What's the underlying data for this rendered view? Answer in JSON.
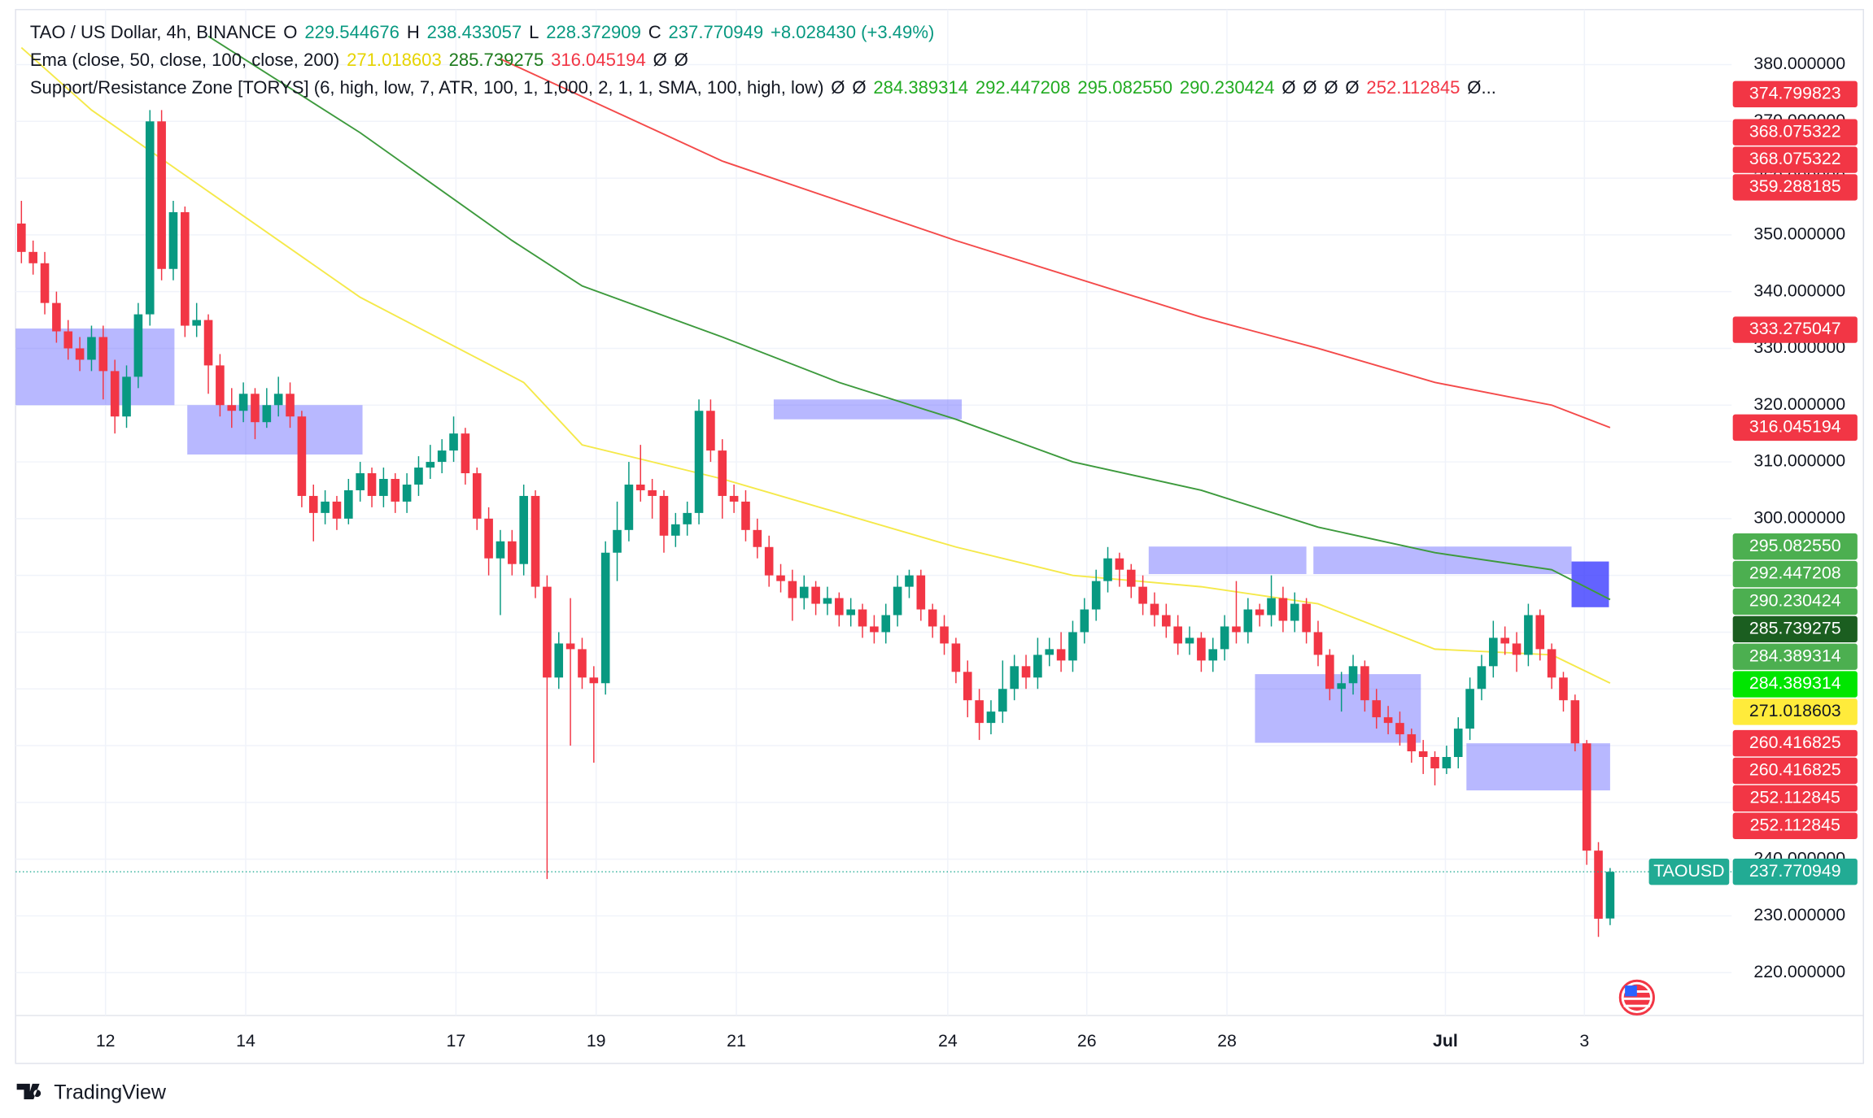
{
  "chart_data": {
    "type": "candlestick",
    "header": [
      [
        {
          "text": "TAO / US Dollar, 4h, BINANCE",
          "color": "#131722"
        },
        {
          "text": "O",
          "color": "#131722"
        },
        {
          "text": "229.544676",
          "color": "#089981"
        },
        {
          "text": "H",
          "color": "#131722"
        },
        {
          "text": "238.433057",
          "color": "#089981"
        },
        {
          "text": "L",
          "color": "#131722"
        },
        {
          "text": "228.372909",
          "color": "#089981"
        },
        {
          "text": "C",
          "color": "#131722"
        },
        {
          "text": "237.770949",
          "color": "#089981"
        },
        {
          "text": "+8.028430 (+3.49%)",
          "color": "#089981"
        }
      ],
      [
        {
          "text": "Ema (close, 50, close, 100, close, 200)",
          "color": "#131722"
        },
        {
          "text": "271.018603",
          "color": "#e6d400"
        },
        {
          "text": "285.739275",
          "color": "#1b7a1b"
        },
        {
          "text": "316.045194",
          "color": "#f23645"
        },
        {
          "text": "Ø",
          "color": "#131722"
        },
        {
          "text": "Ø",
          "color": "#131722"
        }
      ],
      [
        {
          "text": "Support/Resistance Zone [TORYS] (6, high, low, 7, ATR, 100, 1, 1,000, 2, 1, 1, SMA, 100, high, low)",
          "color": "#131722"
        },
        {
          "text": "Ø",
          "color": "#131722"
        },
        {
          "text": "Ø",
          "color": "#131722"
        },
        {
          "text": "284.389314",
          "color": "#22ab22"
        },
        {
          "text": "292.447208",
          "color": "#22ab22"
        },
        {
          "text": "295.082550",
          "color": "#22ab22"
        },
        {
          "text": "290.230424",
          "color": "#22ab22"
        },
        {
          "text": "Ø",
          "color": "#131722"
        },
        {
          "text": "Ø",
          "color": "#131722"
        },
        {
          "text": "Ø",
          "color": "#131722"
        },
        {
          "text": "Ø",
          "color": "#131722"
        },
        {
          "text": "252.112845",
          "color": "#f23645"
        },
        {
          "text": "Ø...",
          "color": "#131722"
        }
      ]
    ],
    "xlim": [
      -0.5,
      146.4
    ],
    "ylim": [
      212.45,
      389.7
    ],
    "xticks": [
      {
        "value": 7.2,
        "label": "12"
      },
      {
        "value": 19.2,
        "label": "14"
      },
      {
        "value": 37.2,
        "label": "17"
      },
      {
        "value": 49.2,
        "label": "19"
      },
      {
        "value": 61.2,
        "label": "21"
      },
      {
        "value": 79.3,
        "label": "24"
      },
      {
        "value": 91.2,
        "label": "26"
      },
      {
        "value": 103.2,
        "label": "28"
      },
      {
        "value": 121.9,
        "label": "Jul"
      },
      {
        "value": 133.8,
        "label": "3"
      }
    ],
    "yticks": [
      {
        "value": 220,
        "label": "220.000000"
      },
      {
        "value": 230,
        "label": "230.000000"
      },
      {
        "value": 240,
        "label": "240.000000"
      },
      {
        "value": 250,
        "label": "250.000000"
      },
      {
        "value": 260,
        "label": "260.000000"
      },
      {
        "value": 270,
        "label": "270.000000"
      },
      {
        "value": 280,
        "label": "280.000000"
      },
      {
        "value": 290,
        "label": "290.000000"
      },
      {
        "value": 300,
        "label": "300.000000"
      },
      {
        "value": 310,
        "label": "310.000000"
      },
      {
        "value": 320,
        "label": "320.000000"
      },
      {
        "value": 330,
        "label": "330.000000"
      },
      {
        "value": 340,
        "label": "340.000000"
      },
      {
        "value": 350,
        "label": "350.000000"
      },
      {
        "value": 360,
        "label": "360.000000"
      },
      {
        "value": 370,
        "label": "370.000000"
      },
      {
        "value": 380,
        "label": "380.000000"
      }
    ],
    "grid": true,
    "up_color": "#089981",
    "down_color": "#f23645",
    "open": [
      352,
      347,
      345,
      338,
      333,
      330,
      328,
      332,
      326,
      318,
      325,
      336,
      370,
      344,
      354,
      334,
      335,
      327,
      320,
      319,
      322,
      317,
      320,
      322,
      318,
      304,
      301,
      303,
      300,
      305,
      308,
      304,
      307,
      303,
      306,
      309,
      310,
      312,
      315,
      308,
      300,
      293,
      296,
      292,
      304,
      288,
      272,
      278,
      277,
      272,
      271,
      294,
      298,
      306,
      305,
      304,
      297,
      299,
      301,
      319,
      312,
      304,
      303,
      298,
      295,
      290,
      289,
      286,
      288,
      285,
      286,
      283,
      284,
      281,
      280,
      283,
      288,
      290,
      284,
      281,
      278,
      273,
      268,
      264,
      266,
      270,
      274,
      272,
      276,
      277,
      275,
      280,
      284,
      289,
      293,
      291,
      288,
      285,
      283,
      281,
      278,
      279,
      275,
      277,
      281,
      280,
      284,
      283,
      286,
      282,
      285,
      280,
      276,
      270,
      271,
      274,
      268,
      265,
      264,
      262,
      259,
      258,
      256,
      258,
      263,
      270,
      274,
      279,
      278,
      276,
      283,
      277,
      272,
      268,
      260.4,
      241.5,
      229.544676
    ],
    "high": [
      356,
      349,
      347,
      340,
      335,
      332,
      334,
      334,
      328,
      327,
      338,
      372,
      372,
      356,
      355,
      338,
      336,
      329,
      323,
      324,
      323,
      323,
      325,
      324,
      319,
      306,
      305,
      304,
      307,
      310,
      309,
      309,
      308,
      308,
      311,
      313,
      314,
      318,
      316,
      309,
      302,
      298,
      298,
      306,
      305,
      290,
      280,
      286,
      279,
      274,
      296,
      303,
      310,
      313,
      307,
      305,
      301,
      303,
      321,
      321,
      314,
      306,
      305,
      300,
      297,
      292,
      291,
      290,
      289,
      288,
      287,
      286,
      285,
      283,
      285,
      290,
      291,
      291,
      285,
      283,
      279,
      275,
      270,
      268,
      275,
      276,
      276,
      279,
      279,
      280,
      282,
      286,
      291,
      295,
      294,
      292,
      290,
      287,
      285,
      283,
      281,
      280,
      279,
      283,
      289,
      286,
      285,
      290,
      288,
      287,
      286,
      282,
      277,
      273,
      276,
      275,
      270,
      267,
      266,
      263,
      261,
      259,
      260,
      265,
      272,
      276,
      282,
      281,
      280,
      285,
      284,
      278,
      273,
      269,
      261,
      243,
      238.433057
    ],
    "low": [
      345,
      343,
      336,
      331,
      328,
      326,
      326,
      321,
      315,
      316,
      323,
      334,
      342,
      342,
      332,
      332,
      322,
      318,
      316,
      317,
      314,
      316,
      318,
      316,
      302,
      296,
      299,
      298,
      299,
      303,
      302,
      302,
      301,
      301,
      304,
      307,
      308,
      310,
      306,
      298,
      290,
      283,
      290,
      290,
      286,
      236.5,
      270,
      260,
      270,
      257,
      269,
      289,
      296,
      303,
      300,
      294,
      295,
      297,
      299,
      310,
      300,
      301,
      296,
      293,
      288,
      287,
      282,
      284,
      283,
      283,
      281,
      281,
      279,
      278,
      278,
      281,
      286,
      282,
      279,
      276,
      271,
      265,
      261,
      262,
      264,
      268,
      270,
      270,
      274,
      273,
      273,
      278,
      282,
      287,
      288,
      286,
      283,
      281,
      279,
      276,
      276,
      273,
      273,
      275,
      278,
      278,
      281,
      281,
      280,
      280,
      278,
      274,
      268,
      266,
      269,
      266,
      263,
      262,
      260,
      257,
      255,
      253,
      255,
      256,
      261,
      268,
      272,
      276,
      273,
      274,
      275,
      270,
      266,
      259,
      239,
      226.3,
      228.372909
    ],
    "close": [
      347,
      345,
      338,
      333,
      330,
      328,
      332,
      326,
      318,
      325,
      336,
      370,
      344,
      354,
      334,
      335,
      327,
      320,
      319,
      322,
      317,
      320,
      322,
      318,
      304,
      301,
      303,
      300,
      305,
      308,
      304,
      307,
      303,
      306,
      309,
      310,
      312,
      315,
      308,
      300,
      293,
      296,
      292,
      304,
      288,
      272,
      278,
      277,
      272,
      271,
      294,
      298,
      306,
      305,
      304,
      297,
      299,
      301,
      319,
      312,
      304,
      303,
      298,
      295,
      290,
      289,
      286,
      288,
      285,
      286,
      283,
      284,
      281,
      280,
      283,
      288,
      290,
      284,
      281,
      278,
      273,
      268,
      264,
      266,
      270,
      274,
      272,
      276,
      277,
      275,
      280,
      284,
      289,
      293,
      291,
      288,
      285,
      283,
      281,
      278,
      279,
      275,
      277,
      281,
      280,
      284,
      283,
      286,
      282,
      285,
      280,
      276,
      270,
      271,
      274,
      268,
      265,
      264,
      262,
      259,
      258,
      256,
      258,
      263,
      270,
      274,
      279,
      278,
      276,
      283,
      277,
      272,
      268,
      260.4,
      241.5,
      229.5,
      237.770949
    ],
    "series": [
      {
        "color": "#f5e94a",
        "x": [
          0,
          6,
          29,
          43,
          48,
          60,
          80,
          90,
          101,
          111,
          121,
          131,
          136
        ],
        "values": [
          383,
          372,
          339,
          324,
          313,
          307,
          295,
          290,
          288,
          285,
          277,
          276,
          271.018603
        ]
      },
      {
        "color": "#3d9a3d",
        "x": [
          16,
          29,
          42,
          48,
          60,
          70,
          80,
          90,
          101,
          111,
          121,
          131,
          136
        ],
        "values": [
          385,
          368,
          349,
          341,
          332,
          324,
          317.5,
          310,
          305,
          298.5,
          294,
          291,
          285.739275
        ]
      },
      {
        "color": "#f44a4a",
        "x": [
          41,
          60,
          80,
          101,
          111,
          121,
          131,
          136
        ],
        "values": [
          381,
          363,
          349,
          335.5,
          330,
          324,
          320,
          316.045194
        ]
      }
    ],
    "zones": [
      {
        "start": -0.5,
        "end": 13.1,
        "top": 333.5,
        "bottom": 320,
        "color": "rgba(98,98,255,0.45)"
      },
      {
        "start": 14.2,
        "end": 29.2,
        "top": 320,
        "bottom": 311.3,
        "color": "rgba(98,98,255,0.45)"
      },
      {
        "start": 64.4,
        "end": 80.5,
        "top": 321,
        "bottom": 317.5,
        "color": "rgba(98,98,255,0.45)"
      },
      {
        "start": 96.5,
        "end": 110,
        "top": 295.08255,
        "bottom": 290.230424,
        "color": "rgba(98,98,255,0.45)"
      },
      {
        "start": 110.6,
        "end": 132.7,
        "top": 295.08255,
        "bottom": 290.230424,
        "color": "rgba(98,98,255,0.45)"
      },
      {
        "start": 132.7,
        "end": 135.9,
        "top": 292.447208,
        "bottom": 284.389314,
        "color": "rgba(60,60,255,0.8)"
      },
      {
        "start": 105.6,
        "end": 119.8,
        "top": 272.6,
        "bottom": 260.5,
        "color": "rgba(98,98,255,0.45)"
      },
      {
        "start": 123.7,
        "end": 136,
        "top": 260.416825,
        "bottom": 252.112845,
        "color": "rgba(98,98,255,0.45)"
      }
    ],
    "price_labels": [
      {
        "value": 374.799823,
        "color": "#f23645"
      },
      {
        "value": 368.075322,
        "color": "#f23645"
      },
      {
        "value": 368.075322,
        "color": "#f23645"
      },
      {
        "value": 359.288185,
        "color": "#f23645"
      },
      {
        "value": 333.275047,
        "color": "#f23645"
      },
      {
        "value": 316.045194,
        "color": "#f23645"
      },
      {
        "value": 295.08255,
        "label": "295.082550",
        "color": "#4caf50"
      },
      {
        "value": 292.447208,
        "color": "#4caf50"
      },
      {
        "value": 290.230424,
        "color": "#4caf50"
      },
      {
        "value": 285.739275,
        "color": "#1b5e20"
      },
      {
        "value": 284.389314,
        "color": "#4caf50"
      },
      {
        "value": 284.389314,
        "color": "#00e600"
      },
      {
        "value": 271.018603,
        "color": "#ffeb3b",
        "text_color": "#131722"
      },
      {
        "value": 260.416825,
        "color": "#f23645"
      },
      {
        "value": 260.416825,
        "color": "#f23645"
      },
      {
        "value": 252.112845,
        "color": "#f23645"
      },
      {
        "value": 252.112845,
        "color": "#f23645"
      }
    ],
    "last_price": {
      "symbol": "TAOUSD",
      "value": 237.770949,
      "color": "#22ab94"
    },
    "watermark": "TradingView"
  }
}
